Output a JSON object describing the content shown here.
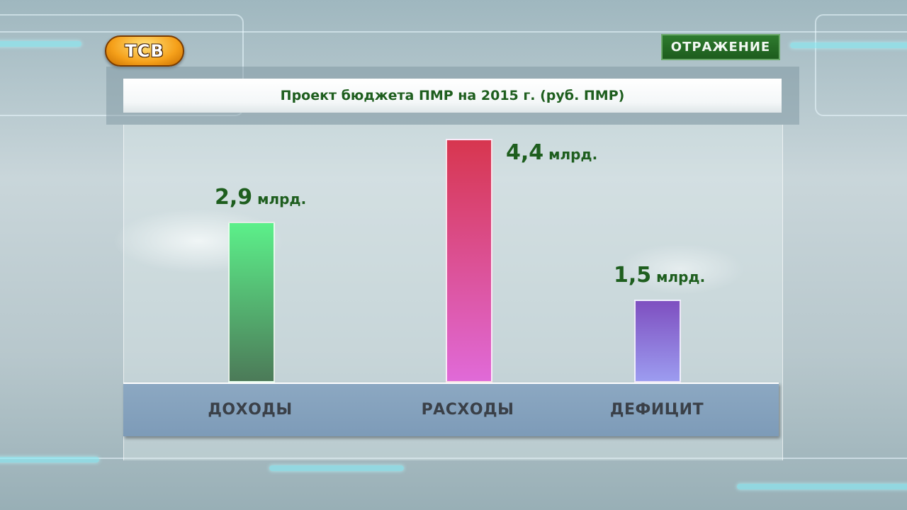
{
  "logo": {
    "text": "ТСВ"
  },
  "badge": {
    "text": "ОТРАЖЕНИЕ"
  },
  "chart_data": {
    "type": "bar",
    "title": "Проект бюджета ПМР на 2015 г. (руб. ПМР)",
    "categories": [
      "ДОХОДЫ",
      "РАСХОДЫ",
      "ДЕФИЦИТ"
    ],
    "values": [
      2.9,
      4.4,
      1.5
    ],
    "data_labels": [
      {
        "num": "2,9",
        "unit": "млрд."
      },
      {
        "num": "4,4",
        "unit": "млрд."
      },
      {
        "num": "1,5",
        "unit": "млрд."
      }
    ],
    "ylim": [
      0,
      4.4
    ],
    "grid": false,
    "legend": "none",
    "colors": [
      {
        "top": "#5cf08a",
        "bottom": "#4c7a58"
      },
      {
        "top": "#d7364f",
        "bottom": "#e06ad8"
      },
      {
        "top": "#7e4fc0",
        "bottom": "#9c9cf0"
      }
    ]
  }
}
